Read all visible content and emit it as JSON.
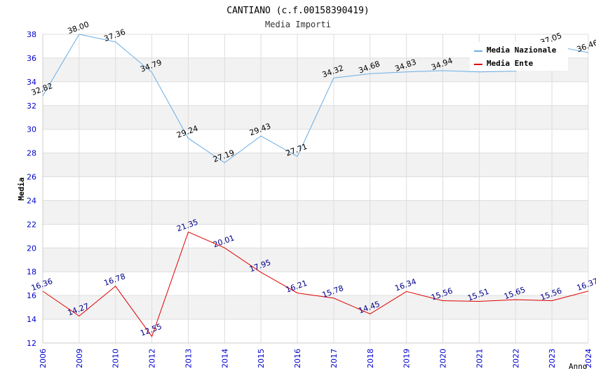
{
  "chart_data": {
    "type": "line",
    "title": "CANTIANO (c.f.00158390419)",
    "subtitle": "Media Importi",
    "xlabel": "Anno",
    "ylabel": "Media",
    "ylim": [
      12,
      38
    ],
    "yticks": [
      "12",
      "14",
      "16",
      "18",
      "20",
      "22",
      "24",
      "26",
      "28",
      "30",
      "32",
      "34",
      "36",
      "38"
    ],
    "categories": [
      "2006",
      "2009",
      "2010",
      "2012",
      "2013",
      "2014",
      "2015",
      "2016",
      "2017",
      "2018",
      "2019",
      "2020",
      "2021",
      "2022",
      "2023",
      "2024"
    ],
    "legend_position": "top-right",
    "grid": true,
    "series": [
      {
        "name": "Media Nazionale",
        "color": "#6aaee6",
        "label_color": "#000000",
        "values": [
          32.82,
          38.0,
          37.36,
          34.79,
          29.24,
          27.19,
          29.43,
          27.71,
          34.32,
          34.68,
          34.83,
          34.94,
          34.83,
          34.9,
          37.05,
          36.46
        ],
        "labels": [
          "32.82",
          "38.00",
          "37.36",
          "34.79",
          "29.24",
          "27.19",
          "29.43",
          "27.71",
          "34.32",
          "34.68",
          "34.83",
          "34.94",
          "",
          "",
          "37.05",
          "36.46"
        ]
      },
      {
        "name": "Media Ente",
        "color": "#e00000",
        "label_color": "#00008b",
        "values": [
          16.36,
          14.27,
          16.78,
          12.55,
          21.35,
          20.01,
          17.95,
          16.21,
          15.78,
          14.45,
          16.34,
          15.56,
          15.51,
          15.65,
          15.56,
          16.37
        ],
        "labels": [
          "16.36",
          "14.27",
          "16.78",
          "12.55",
          "21.35",
          "20.01",
          "17.95",
          "16.21",
          "15.78",
          "14.45",
          "16.34",
          "15.56",
          "15.51",
          "15.65",
          "15.56",
          "16.37"
        ]
      }
    ]
  }
}
